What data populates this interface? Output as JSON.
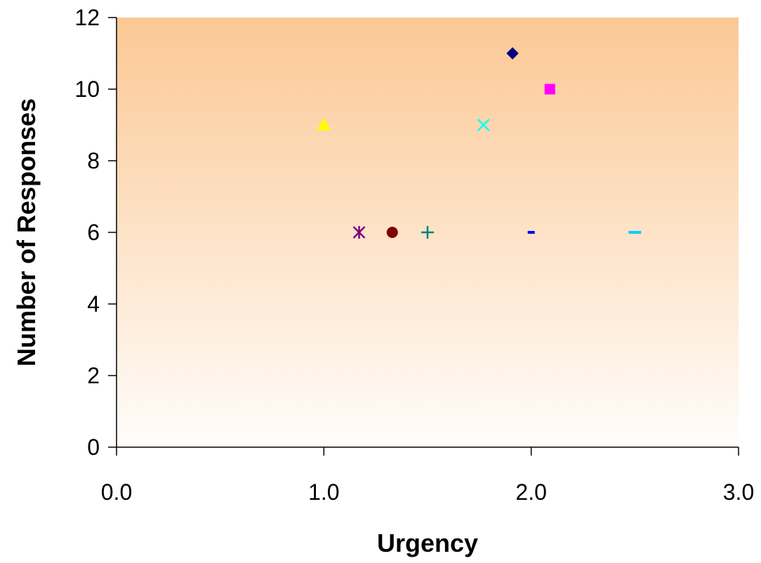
{
  "chart_data": {
    "type": "scatter",
    "title": "",
    "xlabel": "Urgency",
    "ylabel": "Number of Responses",
    "xlim": [
      0,
      3
    ],
    "ylim": [
      0,
      12
    ],
    "xticks": [
      "0.0",
      "1.0",
      "2.0",
      "3.0"
    ],
    "yticks": [
      "0",
      "2",
      "4",
      "6",
      "8",
      "10",
      "12"
    ],
    "grid": false,
    "legend": "none",
    "background_gradient": {
      "top": "#fbc894",
      "bottom": "#fffdfb"
    },
    "series": [
      {
        "x": 1.91,
        "y": 11,
        "marker": "diamond",
        "color": "#000080"
      },
      {
        "x": 2.09,
        "y": 10,
        "marker": "square",
        "color": "#ff00ff"
      },
      {
        "x": 1.0,
        "y": 9,
        "marker": "triangle",
        "color": "#ffff00"
      },
      {
        "x": 1.77,
        "y": 9,
        "marker": "x",
        "color": "#00ffff"
      },
      {
        "x": 1.17,
        "y": 6,
        "marker": "star",
        "color": "#800080"
      },
      {
        "x": 1.33,
        "y": 6,
        "marker": "circle",
        "color": "#800000"
      },
      {
        "x": 1.5,
        "y": 6,
        "marker": "plus",
        "color": "#008080"
      },
      {
        "x": 2.0,
        "y": 6,
        "marker": "dash",
        "color": "#0000ff"
      },
      {
        "x": 2.5,
        "y": 6,
        "marker": "long-dash",
        "color": "#00ccff"
      }
    ]
  }
}
